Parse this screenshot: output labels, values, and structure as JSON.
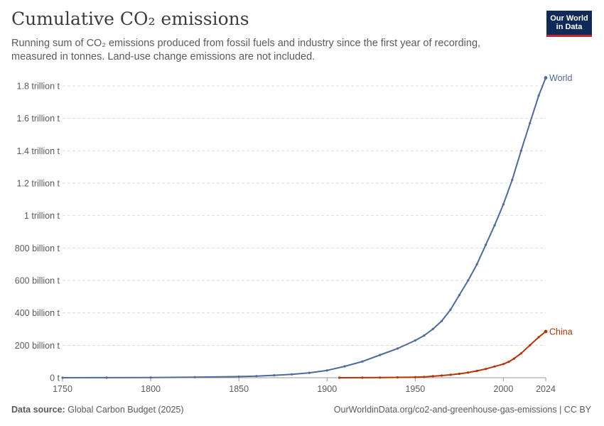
{
  "header": {
    "title": "Cumulative CO₂ emissions",
    "subtitle": "Running sum of CO₂ emissions produced from fossil fuels and industry since the first year of recording, measured in tonnes. Land-use change emissions are not included."
  },
  "logo": {
    "line1": "Our World",
    "line2": "in Data"
  },
  "footer": {
    "source_label": "Data source:",
    "source_value": "Global Carbon Budget (2025)",
    "url": "OurWorldinData.org/co2-and-greenhouse-gas-emissions | CC BY"
  },
  "chart_data": {
    "type": "line",
    "title": "Cumulative CO₂ emissions",
    "xlabel": "",
    "ylabel": "",
    "xlim": [
      1750,
      2024
    ],
    "ylim": [
      0,
      1800000000000
    ],
    "x_ticks": [
      1750,
      1800,
      1850,
      1900,
      1950,
      2000,
      2024
    ],
    "x_tick_labels": [
      "1750",
      "1800",
      "1850",
      "1900",
      "1950",
      "2000",
      "2024"
    ],
    "y_ticks": [
      0,
      200000000000,
      400000000000,
      600000000000,
      800000000000,
      1000000000000,
      1200000000000,
      1400000000000,
      1600000000000,
      1800000000000
    ],
    "y_tick_labels": [
      "0 t",
      "200 billion t",
      "400 billion t",
      "600 billion t",
      "800 billion t",
      "1 trillion t",
      "1.2 trillion t",
      "1.4 trillion t",
      "1.6 trillion t",
      "1.8 trillion t"
    ],
    "grid": true,
    "legend": "line-end labels",
    "series": [
      {
        "name": "World",
        "color": "#4c6a9c",
        "x": [
          1750,
          1775,
          1800,
          1825,
          1850,
          1860,
          1870,
          1880,
          1890,
          1900,
          1910,
          1920,
          1930,
          1940,
          1950,
          1955,
          1960,
          1965,
          1970,
          1975,
          1980,
          1985,
          1990,
          1995,
          2000,
          2005,
          2010,
          2015,
          2020,
          2024
        ],
        "y": [
          0,
          500000000,
          1500000000,
          3500000000,
          7000000000,
          10000000000,
          15000000000,
          21000000000,
          30000000000,
          45000000000,
          70000000000,
          100000000000,
          140000000000,
          180000000000,
          230000000000,
          260000000000,
          300000000000,
          350000000000,
          420000000000,
          510000000000,
          600000000000,
          700000000000,
          820000000000,
          940000000000,
          1070000000000,
          1220000000000,
          1400000000000,
          1570000000000,
          1740000000000,
          1850000000000
        ]
      },
      {
        "name": "China",
        "color": "#b13507",
        "x": [
          1907,
          1920,
          1930,
          1940,
          1950,
          1955,
          1960,
          1965,
          1970,
          1975,
          1980,
          1985,
          1990,
          1995,
          2000,
          2003,
          2006,
          2010,
          2015,
          2020,
          2024
        ],
        "y": [
          0,
          300000000,
          1000000000,
          2000000000,
          3500000000,
          5000000000,
          9000000000,
          13000000000,
          18000000000,
          24000000000,
          32000000000,
          42000000000,
          54000000000,
          69000000000,
          84000000000,
          98000000000,
          118000000000,
          150000000000,
          200000000000,
          250000000000,
          285000000000
        ]
      }
    ]
  }
}
